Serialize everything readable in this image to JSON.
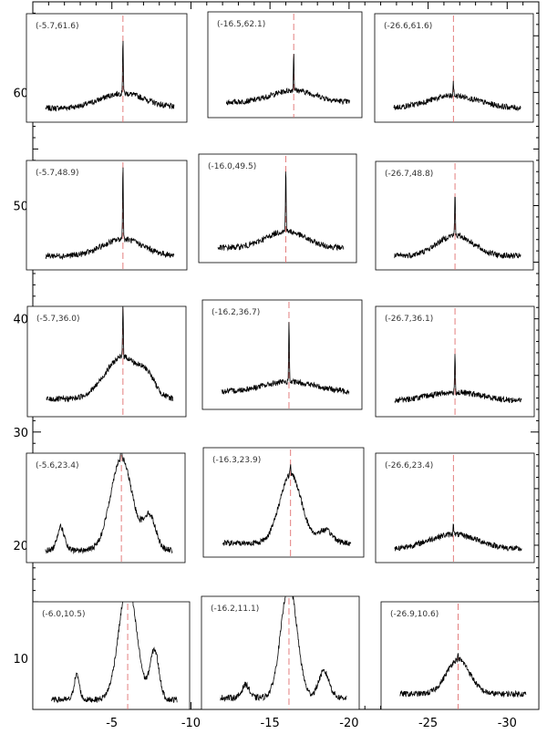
{
  "chart_data": {
    "type": "line",
    "xlim": [
      0,
      -32
    ],
    "ylim": [
      5.5,
      68
    ],
    "x_ticks": [
      -5,
      -10,
      -15,
      -20,
      -25,
      -30
    ],
    "x_tick_labels": [
      "-5",
      "-10",
      "-15",
      "-20",
      "-25",
      "-30"
    ],
    "y_ticks": [
      10,
      20,
      30,
      40,
      50,
      60
    ],
    "y_tick_labels": [
      "10",
      "20",
      "30",
      "40",
      "50",
      "60"
    ],
    "spectrum_color": "#000000",
    "marker_color": "#e07070",
    "panels": [
      {
        "label": "(-5.7,61.6)",
        "x": -5.7,
        "peak": 0.68,
        "wide_amp": 0.18,
        "wide_w": 0.25,
        "sides": [],
        "baseline": 0.08
      },
      {
        "label": "(-16.5,62.1)",
        "x": -16.5,
        "peak": 0.48,
        "wide_amp": 0.15,
        "wide_w": 0.25,
        "sides": [],
        "baseline": 0.1
      },
      {
        "label": "(-26.6,61.6)",
        "x": -26.6,
        "peak": 0.15,
        "wide_amp": 0.15,
        "wide_w": 0.28,
        "sides": [],
        "baseline": 0.08
      },
      {
        "label": "(-5.7,48.9)",
        "x": -5.7,
        "peak": 0.9,
        "wide_amp": 0.2,
        "wide_w": 0.22,
        "sides": [],
        "baseline": 0.08
      },
      {
        "label": "(-16.0,49.5)",
        "x": -16.0,
        "peak": 0.8,
        "wide_amp": 0.2,
        "wide_w": 0.22,
        "sides": [],
        "baseline": 0.09
      },
      {
        "label": "(-26.7,48.8)",
        "x": -26.7,
        "peak": 0.52,
        "wide_amp": 0.25,
        "wide_w": 0.2,
        "sides": [],
        "baseline": 0.08
      },
      {
        "label": "(-5.7,36.0)",
        "x": -5.7,
        "peak": 0.65,
        "wide_amp": 0.5,
        "wide_w": 0.2,
        "sides": [
          {
            "pos": 0.8,
            "amp": 0.15,
            "w": 0.08
          }
        ],
        "baseline": 0.12
      },
      {
        "label": "(-16.2,36.7)",
        "x": -16.2,
        "peak": 0.72,
        "wide_amp": 0.12,
        "wide_w": 0.3,
        "sides": [],
        "baseline": 0.12
      },
      {
        "label": "(-26.7,36.1)",
        "x": -26.7,
        "peak": 0.45,
        "wide_amp": 0.1,
        "wide_w": 0.3,
        "sides": [],
        "baseline": 0.1
      },
      {
        "label": "(-5.6,23.4)",
        "x": -5.6,
        "peak": 0.25,
        "wide_amp": 1.1,
        "wide_w": 0.12,
        "sides": [
          {
            "pos": 0.12,
            "amp": 0.28,
            "w": 0.04
          },
          {
            "pos": 0.82,
            "amp": 0.4,
            "w": 0.07
          }
        ],
        "baseline": 0.06
      },
      {
        "label": "(-16.3,23.9)",
        "x": -16.3,
        "peak": 0.1,
        "wide_amp": 0.82,
        "wide_w": 0.12,
        "sides": [
          {
            "pos": 0.8,
            "amp": 0.15,
            "w": 0.08
          }
        ],
        "baseline": 0.08
      },
      {
        "label": "(-26.6,23.4)",
        "x": -26.6,
        "peak": 0.15,
        "wide_amp": 0.18,
        "wide_w": 0.28,
        "sides": [],
        "baseline": 0.07
      },
      {
        "label": "(-6.0,10.5)",
        "x": -6.0,
        "peak": 0.2,
        "wide_amp": 1.4,
        "wide_w": 0.1,
        "sides": [
          {
            "pos": 0.2,
            "amp": 0.3,
            "w": 0.03
          },
          {
            "pos": 0.82,
            "amp": 0.6,
            "w": 0.05
          }
        ],
        "baseline": 0.03
      },
      {
        "label": "(-16.2,11.1)",
        "x": -16.2,
        "peak": 0.2,
        "wide_amp": 1.3,
        "wide_w": 0.09,
        "sides": [
          {
            "pos": 0.2,
            "amp": 0.15,
            "w": 0.04
          },
          {
            "pos": 0.82,
            "amp": 0.3,
            "w": 0.06
          }
        ],
        "baseline": 0.05
      },
      {
        "label": "(-26.9,10.6)",
        "x": -26.9,
        "peak": 0.05,
        "wide_amp": 0.42,
        "wide_w": 0.13,
        "sides": [],
        "baseline": 0.1
      }
    ]
  }
}
